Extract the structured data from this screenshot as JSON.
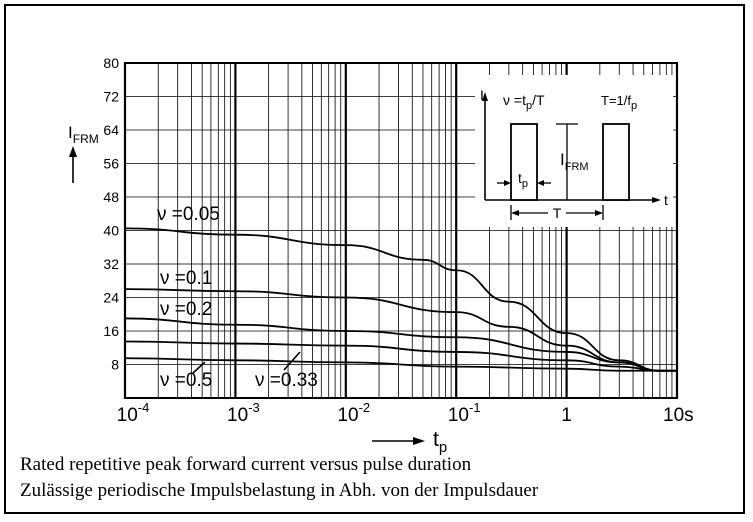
{
  "chart_data": {
    "type": "line",
    "x_scale": "log",
    "xlim": [
      0.0001,
      10
    ],
    "ylim": [
      0,
      80
    ],
    "x_ticks": [
      {
        "value": 0.0001,
        "base": "10",
        "exp": "-4"
      },
      {
        "value": 0.001,
        "base": "10",
        "exp": "-3"
      },
      {
        "value": 0.01,
        "base": "10",
        "exp": "-2"
      },
      {
        "value": 0.1,
        "base": "10",
        "exp": "-1"
      },
      {
        "value": 1,
        "base": "1",
        "exp": ""
      },
      {
        "value": 10,
        "base": "10s",
        "exp": ""
      }
    ],
    "y_ticks": [
      8,
      16,
      24,
      32,
      40,
      48,
      56,
      64,
      72,
      80
    ],
    "xlabel": {
      "base": "t",
      "sub": "p"
    },
    "ylabel": {
      "base": "I",
      "sub": "FRM"
    },
    "grid": true,
    "series": [
      {
        "name": "ν =0.05",
        "x": [
          0.0001,
          0.001,
          0.01,
          0.05,
          0.1,
          0.3,
          1,
          3,
          7,
          10
        ],
        "y": [
          40.5,
          39,
          36.5,
          33,
          30.5,
          23,
          15.5,
          9,
          6.5,
          6.5
        ]
      },
      {
        "name": "ν =0.1",
        "x": [
          0.0001,
          0.001,
          0.01,
          0.1,
          0.3,
          1,
          3,
          7,
          10
        ],
        "y": [
          26,
          25.5,
          24,
          20.5,
          17,
          12.5,
          8.5,
          6.5,
          6.5
        ]
      },
      {
        "name": "ν =0.2",
        "x": [
          0.0001,
          0.001,
          0.01,
          0.1,
          1,
          3,
          7,
          10
        ],
        "y": [
          19,
          17.5,
          16,
          14.5,
          11,
          8.5,
          6.5,
          6.5
        ]
      },
      {
        "name": "ν =0.33",
        "x": [
          0.0001,
          0.001,
          0.01,
          0.1,
          1,
          3,
          7,
          10
        ],
        "y": [
          13.5,
          13,
          12.5,
          11,
          9,
          7.5,
          6.5,
          6.5
        ]
      },
      {
        "name": "ν =0.5",
        "x": [
          0.0001,
          0.001,
          0.01,
          0.1,
          1,
          3,
          7,
          10
        ],
        "y": [
          9.5,
          9,
          8.5,
          7.5,
          7,
          6.5,
          6.5,
          6.5
        ]
      }
    ],
    "inset": {
      "formula_nu": "ν =t",
      "formula_nu_sub": "p",
      "formula_nu_tail": "/T",
      "formula_T": "T=1/f",
      "formula_T_sub": "p",
      "axis_y": "I",
      "axis_x": "t",
      "label_tp": "t",
      "label_tp_sub": "p",
      "label_ifrm": "I",
      "label_ifrm_sub": "FRM",
      "label_T": "T"
    }
  },
  "caption": {
    "line1": "Rated repetitive peak forward current versus pulse duration",
    "line2": "Zulässige periodische Impulsbelastung in Abh. von der Impulsdauer"
  }
}
